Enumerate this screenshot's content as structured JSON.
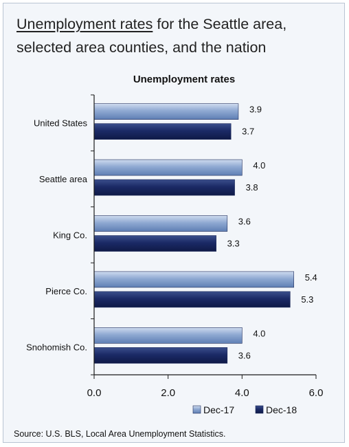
{
  "header": {
    "title_underlined": "Unemployment rates",
    "title_rest_line1": " for the Seattle area,",
    "title_line2": "selected area counties, and the nation"
  },
  "footer": {
    "source": "Source: U.S. BLS, Local Area Unemployment Statistics."
  },
  "colors": {
    "dec17_light": "#cfdcef",
    "dec17_mid": "#8fa9d2",
    "dec17_dark": "#5f7fb4",
    "dec18_light": "#3b4f8c",
    "dec18_mid": "#1b2a66",
    "dec18_dark": "#0f1a47",
    "axis": "#1a1a1a"
  },
  "chart_data": {
    "type": "bar",
    "orientation": "horizontal",
    "title": "Unemployment rates",
    "categories": [
      "United States",
      "Seattle area",
      "King Co.",
      "Pierce Co.",
      "Snohomish Co."
    ],
    "series": [
      {
        "name": "Dec-17",
        "values": [
          3.9,
          4.0,
          3.6,
          5.4,
          4.0
        ]
      },
      {
        "name": "Dec-18",
        "values": [
          3.7,
          3.8,
          3.3,
          5.3,
          3.6
        ]
      }
    ],
    "xlim": [
      0,
      6
    ],
    "xticks": [
      "0.0",
      "2.0",
      "4.0",
      "6.0"
    ],
    "xlabel": "",
    "ylabel": "",
    "grid": false,
    "legend_position": "bottom-right"
  }
}
